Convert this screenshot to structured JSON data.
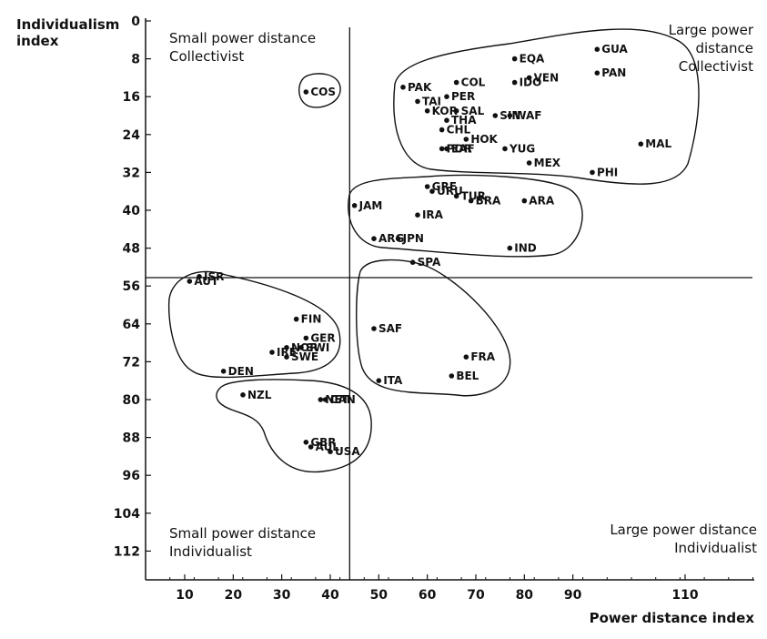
{
  "chart_data": {
    "type": "scatter",
    "title": "",
    "xlabel": "Power distance index",
    "ylabel_lines": [
      "Individualism",
      "index"
    ],
    "xlim": [
      10,
      110
    ],
    "ylim": [
      0,
      112
    ],
    "y_inverted": true,
    "xticks": [
      10,
      20,
      30,
      40,
      50,
      60,
      70,
      80,
      90,
      110
    ],
    "yticks": [
      0,
      8,
      16,
      24,
      32,
      40,
      48,
      56,
      64,
      72,
      80,
      88,
      96,
      104,
      112
    ],
    "dividers": {
      "x": 44,
      "y": 50
    },
    "quadrant_labels": {
      "top_left": [
        "Small power distance",
        "Collectivist"
      ],
      "top_right": [
        "Large power",
        "distance",
        "Collectivist"
      ],
      "bottom_left": [
        "Small power distance",
        "Individualist"
      ],
      "bottom_right": [
        "Large power distance",
        "Individualist"
      ]
    },
    "points": [
      {
        "label": "GUA",
        "x": 95,
        "y": 6
      },
      {
        "label": "PAN",
        "x": 95,
        "y": 11
      },
      {
        "label": "EQA",
        "x": 78,
        "y": 8
      },
      {
        "label": "VEN",
        "x": 81,
        "y": 12
      },
      {
        "label": "COL",
        "x": 66,
        "y": 13
      },
      {
        "label": "IDO",
        "x": 78,
        "y": 13
      },
      {
        "label": "PAK",
        "x": 55,
        "y": 14
      },
      {
        "label": "COS",
        "x": 35,
        "y": 15
      },
      {
        "label": "PER",
        "x": 64,
        "y": 16
      },
      {
        "label": "TAI",
        "x": 58,
        "y": 17
      },
      {
        "label": "SAL",
        "x": 66,
        "y": 19
      },
      {
        "label": "KOR",
        "x": 60,
        "y": 19
      },
      {
        "label": "SIN",
        "x": 74,
        "y": 20
      },
      {
        "label": "WAF",
        "x": 77,
        "y": 20
      },
      {
        "label": "THA",
        "x": 64,
        "y": 21
      },
      {
        "label": "CHL",
        "x": 63,
        "y": 23
      },
      {
        "label": "MAL",
        "x": 104,
        "y": 26
      },
      {
        "label": "HOK",
        "x": 68,
        "y": 25
      },
      {
        "label": "POR",
        "x": 63,
        "y": 27
      },
      {
        "label": "EAF",
        "x": 64,
        "y": 27
      },
      {
        "label": "YUG",
        "x": 76,
        "y": 27
      },
      {
        "label": "MEX",
        "x": 81,
        "y": 30
      },
      {
        "label": "PHI",
        "x": 94,
        "y": 32
      },
      {
        "label": "GRE",
        "x": 60,
        "y": 35
      },
      {
        "label": "URU",
        "x": 61,
        "y": 36
      },
      {
        "label": "TUR",
        "x": 66,
        "y": 37
      },
      {
        "label": "JAM",
        "x": 45,
        "y": 39
      },
      {
        "label": "BRA",
        "x": 69,
        "y": 38
      },
      {
        "label": "ARA",
        "x": 80,
        "y": 38
      },
      {
        "label": "IRA",
        "x": 58,
        "y": 41
      },
      {
        "label": "ARG",
        "x": 49,
        "y": 46
      },
      {
        "label": "JPN",
        "x": 54,
        "y": 46
      },
      {
        "label": "IND",
        "x": 77,
        "y": 48
      },
      {
        "label": "SPA",
        "x": 57,
        "y": 51
      },
      {
        "label": "ISR",
        "x": 13,
        "y": 54
      },
      {
        "label": "AUT",
        "x": 11,
        "y": 55
      },
      {
        "label": "FIN",
        "x": 33,
        "y": 63
      },
      {
        "label": "GER",
        "x": 35,
        "y": 67
      },
      {
        "label": "SAF",
        "x": 49,
        "y": 65
      },
      {
        "label": "NOR",
        "x": 31,
        "y": 69
      },
      {
        "label": "SWI",
        "x": 34,
        "y": 69
      },
      {
        "label": "IRE",
        "x": 28,
        "y": 70
      },
      {
        "label": "SWE",
        "x": 31,
        "y": 71
      },
      {
        "label": "FRA",
        "x": 68,
        "y": 71
      },
      {
        "label": "DEN",
        "x": 18,
        "y": 74
      },
      {
        "label": "BEL",
        "x": 65,
        "y": 75
      },
      {
        "label": "ITA",
        "x": 50,
        "y": 76
      },
      {
        "label": "NZL",
        "x": 22,
        "y": 79
      },
      {
        "label": "NET",
        "x": 38,
        "y": 80
      },
      {
        "label": "CAN",
        "x": 39,
        "y": 80
      },
      {
        "label": "GBR",
        "x": 35,
        "y": 89
      },
      {
        "label": "AUL",
        "x": 36,
        "y": 90
      },
      {
        "label": "USA",
        "x": 40,
        "y": 91
      }
    ]
  }
}
